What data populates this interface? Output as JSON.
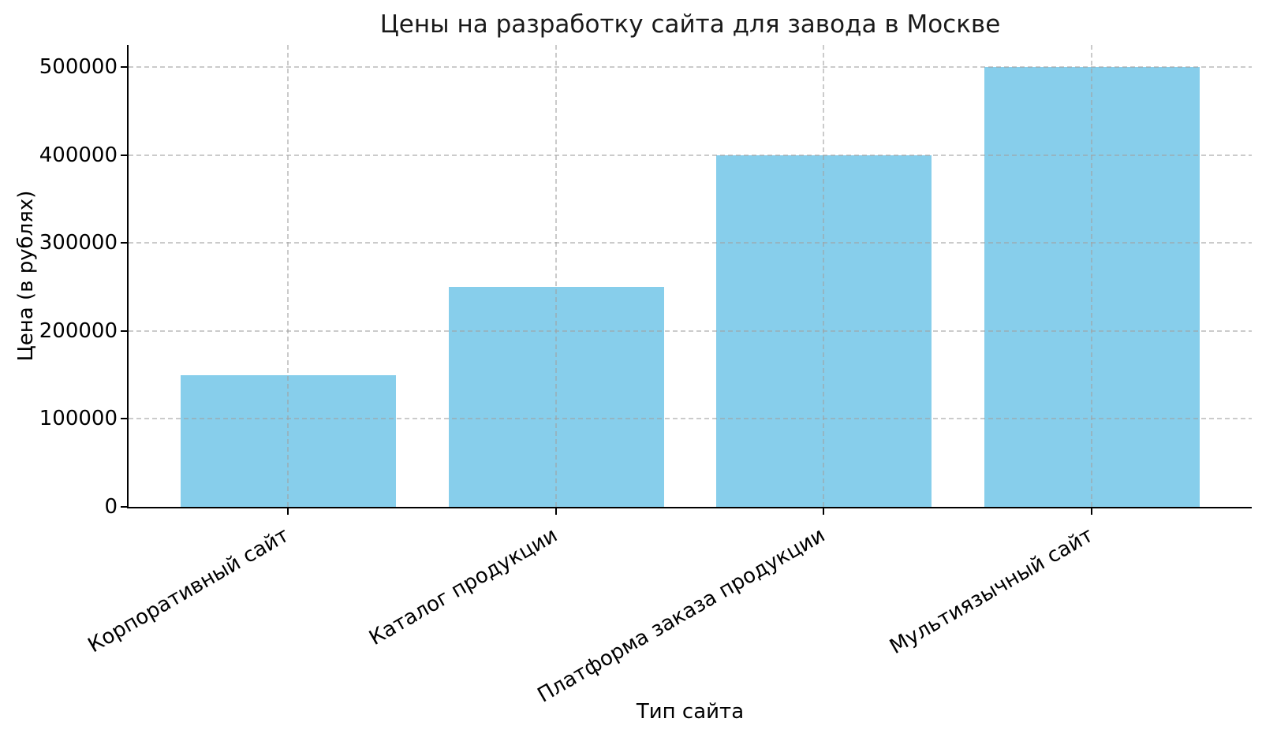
{
  "chart_data": {
    "type": "bar",
    "title": "Цены на разработку сайта для завода в Москве",
    "xlabel": "Тип сайта",
    "ylabel": "Цена (в рублях)",
    "categories": [
      "Корпоративный сайт",
      "Каталог продукции",
      "Платформа заказа продукции",
      "Мультиязычный сайт"
    ],
    "values": [
      150000,
      250000,
      400000,
      500000
    ],
    "yticks": [
      0,
      100000,
      200000,
      300000,
      400000,
      500000
    ],
    "ytick_labels": [
      "0",
      "100000",
      "200000",
      "300000",
      "400000",
      "500000"
    ],
    "ylim": [
      0,
      525000
    ],
    "xtick_rotation_deg": 30,
    "bar_color": "#87CEEB",
    "grid_color_rgba": "rgba(160,160,160,0.55)",
    "grid_style": "dashed",
    "grid_on": true,
    "legend": "none",
    "axis_color": "#000000",
    "text_color": "#000000",
    "background": "#ffffff"
  }
}
